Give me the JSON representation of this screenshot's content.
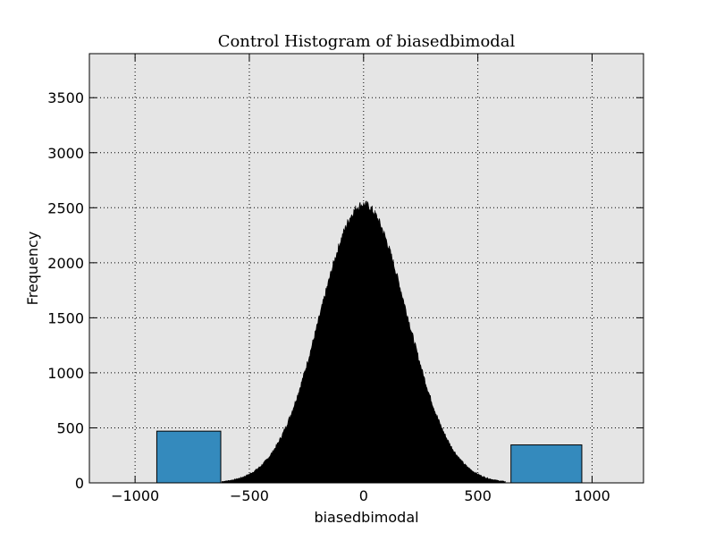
{
  "chart_data": {
    "type": "bar",
    "title": "Control Histogram of biasedbimodal",
    "xlabel": "biasedbimodal",
    "ylabel": "Frequency",
    "xlim": [
      -1200,
      1225
    ],
    "ylim": [
      0,
      3900
    ],
    "grid": true,
    "x_ticks": [
      -1000,
      -500,
      0,
      500,
      1000
    ],
    "x_tick_labels": [
      "−1000",
      "−500",
      "0",
      "500",
      "1000"
    ],
    "y_ticks": [
      0,
      500,
      1000,
      1500,
      2000,
      2500,
      3000,
      3500
    ],
    "y_tick_labels": [
      "0",
      "500",
      "1000",
      "1500",
      "2000",
      "2500",
      "3000",
      "3500"
    ],
    "colors": {
      "background": "#e5e5e5",
      "gaussian_fill": "#000000",
      "bar_fill": "#348abd",
      "bar_edge": "#000000"
    },
    "series": [
      {
        "type": "bars",
        "bins": [
          {
            "x0": -905,
            "x1": -625,
            "value": 470
          },
          {
            "x0": 645,
            "x1": 955,
            "value": 345
          }
        ]
      },
      {
        "type": "gaussian_histogram",
        "x_range": [
          -620,
          620
        ],
        "peak": 2530,
        "sigma": 190,
        "samples": [
          {
            "x": -600,
            "y": 20
          },
          {
            "x": -500,
            "y": 80
          },
          {
            "x": -400,
            "y": 280
          },
          {
            "x": -300,
            "y": 720
          },
          {
            "x": -200,
            "y": 1460
          },
          {
            "x": -100,
            "y": 2200
          },
          {
            "x": 0,
            "y": 2530
          },
          {
            "x": 100,
            "y": 2200
          },
          {
            "x": 200,
            "y": 1460
          },
          {
            "x": 300,
            "y": 720
          },
          {
            "x": 400,
            "y": 280
          },
          {
            "x": 500,
            "y": 80
          },
          {
            "x": 600,
            "y": 20
          }
        ]
      }
    ]
  }
}
